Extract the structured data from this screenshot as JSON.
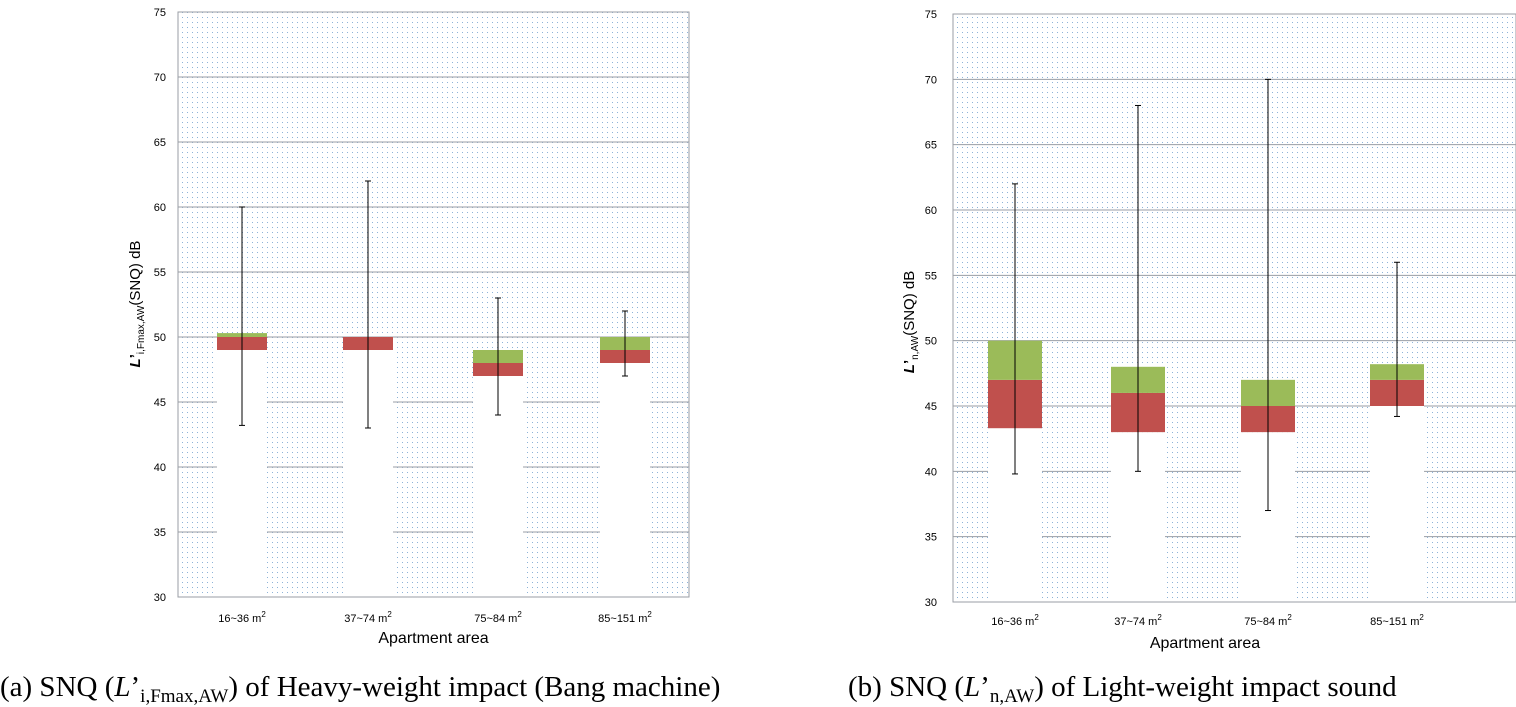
{
  "chart_data": [
    {
      "type": "bar",
      "panel": "a",
      "ylim": [
        30,
        75
      ],
      "yticks": [
        30,
        35,
        40,
        45,
        50,
        55,
        60,
        65,
        70,
        75
      ],
      "categories": [
        "16~36",
        "37~74",
        "75~84",
        "85~151"
      ],
      "category_unit": "m",
      "category_unit_sup": "2",
      "xlabel": "Apartment area",
      "ylabel_main": "L",
      "ylabel_prime": "’",
      "ylabel_sub": "i,Fmax,AW",
      "ylabel_rest": "(SNQ) dB",
      "bars": [
        {
          "base": 49.0,
          "mid": 50.0,
          "top": 50.3,
          "whisker_low": 43.2,
          "whisker_high": 60.0
        },
        {
          "base": 49.0,
          "mid": 50.0,
          "top": 50.0,
          "whisker_low": 43.0,
          "whisker_high": 62.0
        },
        {
          "base": 47.0,
          "mid": 48.0,
          "top": 49.0,
          "whisker_low": 44.0,
          "whisker_high": 53.0
        },
        {
          "base": 48.0,
          "mid": 49.0,
          "top": 50.0,
          "whisker_low": 47.0,
          "whisker_high": 52.0
        }
      ],
      "caption_prefix": "(a) SNQ (",
      "caption_italic": "L",
      "caption_prime": "’",
      "caption_sub": "i,Fmax,AW",
      "caption_suffix": ") of Heavy-weight impact (Bang machine)"
    },
    {
      "type": "bar",
      "panel": "b",
      "ylim": [
        30,
        75
      ],
      "yticks": [
        30,
        35,
        40,
        45,
        50,
        55,
        60,
        65,
        70,
        75
      ],
      "categories": [
        "16~36",
        "37~74",
        "75~84",
        "85~151"
      ],
      "category_unit": "m",
      "category_unit_sup": "2",
      "xlabel": "Apartment area",
      "ylabel_main": "L",
      "ylabel_prime": "’",
      "ylabel_sub": "n,AW",
      "ylabel_rest": "(SNQ) dB",
      "bars": [
        {
          "base": 43.3,
          "mid": 47.0,
          "top": 50.0,
          "whisker_low": 39.8,
          "whisker_high": 62.0
        },
        {
          "base": 43.0,
          "mid": 46.0,
          "top": 48.0,
          "whisker_low": 40.0,
          "whisker_high": 68.0
        },
        {
          "base": 43.0,
          "mid": 45.0,
          "top": 47.0,
          "whisker_low": 37.0,
          "whisker_high": 70.0
        },
        {
          "base": 45.0,
          "mid": 47.0,
          "top": 48.2,
          "whisker_low": 44.2,
          "whisker_high": 56.0
        }
      ],
      "caption_prefix": "(b) SNQ (",
      "caption_italic": "L",
      "caption_prime": "’",
      "caption_sub": "n,AW",
      "caption_suffix": ") of Light-weight impact sound"
    }
  ],
  "colors": {
    "upper_segment": "#9bbb59",
    "lower_segment": "#c0504d",
    "whisker": "#000000",
    "gridline": "#9a9ea4",
    "dot": "#8db3d8",
    "bar_background": "#ffffff"
  }
}
